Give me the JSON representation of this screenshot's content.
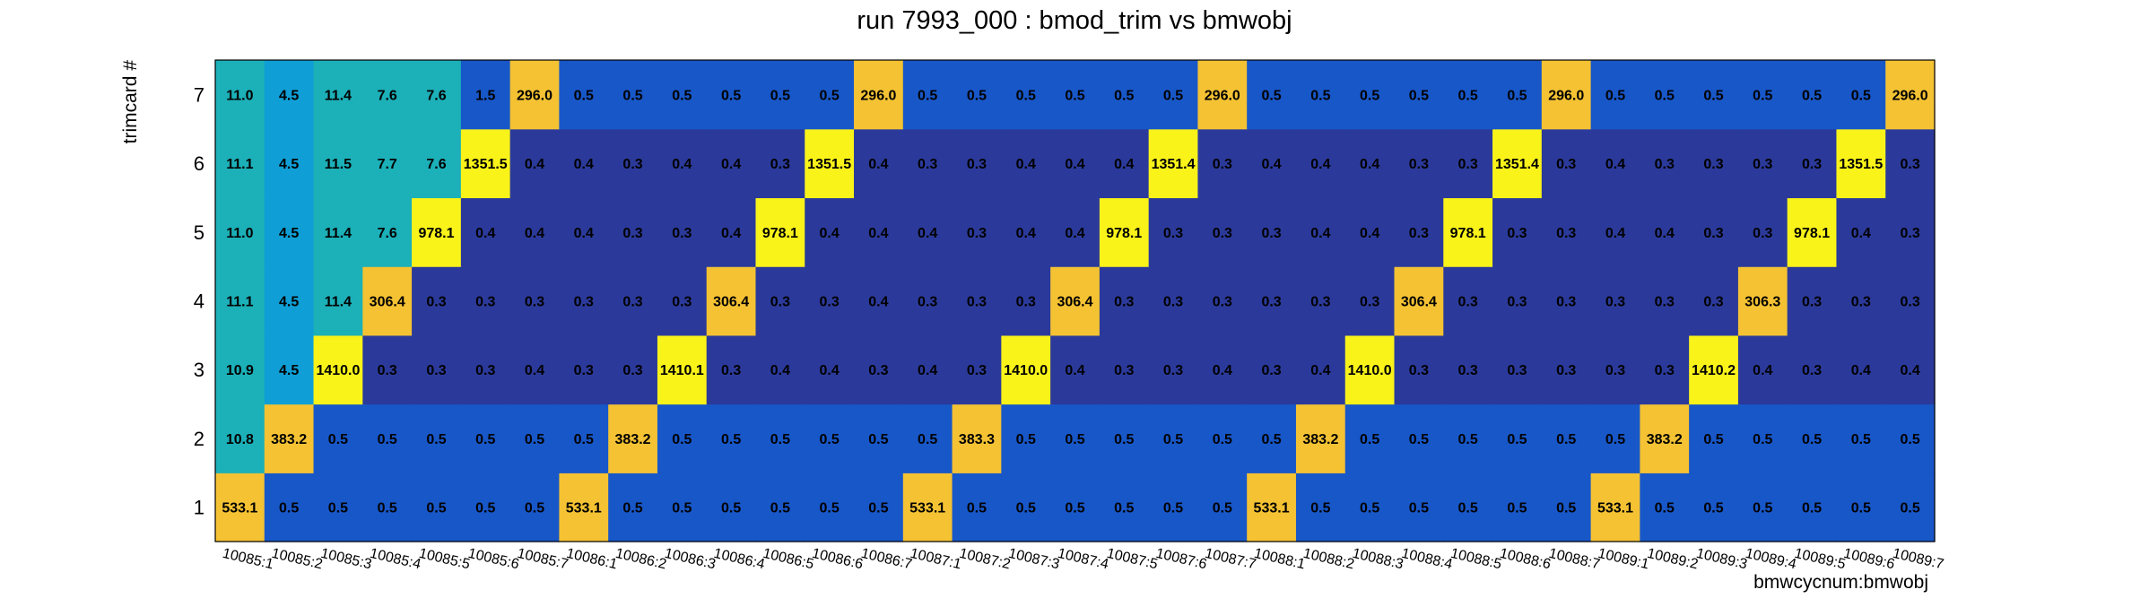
{
  "chart_data": {
    "type": "heatmap",
    "title": "run 7993_000 : bmod_trim vs bmwobj",
    "xlabel": "bmwcycnum:bmwobj",
    "ylabel": "trimcard #",
    "x_categories": [
      "10085:1",
      "10085:2",
      "10085:3",
      "10085:4",
      "10085:5",
      "10085:6",
      "10085:7",
      "10086:1",
      "10086:2",
      "10086:3",
      "10086:4",
      "10086:5",
      "10086:6",
      "10086:7",
      "10087:1",
      "10087:2",
      "10087:3",
      "10087:4",
      "10087:5",
      "10087:6",
      "10087:7",
      "10088:1",
      "10088:2",
      "10088:3",
      "10088:4",
      "10088:5",
      "10088:6",
      "10088:7",
      "10089:1",
      "10089:2",
      "10089:3",
      "10089:4",
      "10089:5",
      "10089:6",
      "10089:7"
    ],
    "y_categories": [
      "1",
      "2",
      "3",
      "4",
      "5",
      "6",
      "7"
    ],
    "values": [
      [
        533.1,
        0.5,
        0.5,
        0.5,
        0.5,
        0.5,
        0.5,
        533.1,
        0.5,
        0.5,
        0.5,
        0.5,
        0.5,
        0.5,
        533.1,
        0.5,
        0.5,
        0.5,
        0.5,
        0.5,
        0.5,
        533.1,
        0.5,
        0.5,
        0.5,
        0.5,
        0.5,
        0.5,
        533.1,
        0.5,
        0.5,
        0.5,
        0.5,
        0.5,
        0.5
      ],
      [
        10.8,
        383.2,
        0.5,
        0.5,
        0.5,
        0.5,
        0.5,
        0.5,
        383.2,
        0.5,
        0.5,
        0.5,
        0.5,
        0.5,
        0.5,
        383.3,
        0.5,
        0.5,
        0.5,
        0.5,
        0.5,
        0.5,
        383.2,
        0.5,
        0.5,
        0.5,
        0.5,
        0.5,
        0.5,
        383.2,
        0.5,
        0.5,
        0.5,
        0.5,
        0.5
      ],
      [
        10.9,
        4.5,
        1410.0,
        0.3,
        0.3,
        0.3,
        0.4,
        0.3,
        0.3,
        1410.1,
        0.3,
        0.4,
        0.4,
        0.3,
        0.4,
        0.3,
        1410.0,
        0.4,
        0.3,
        0.3,
        0.4,
        0.3,
        0.4,
        1410.0,
        0.3,
        0.3,
        0.3,
        0.3,
        0.3,
        0.3,
        1410.2,
        0.4,
        0.3,
        0.4,
        0.4
      ],
      [
        11.1,
        4.5,
        11.4,
        306.4,
        0.3,
        0.3,
        0.3,
        0.3,
        0.3,
        0.3,
        306.4,
        0.3,
        0.3,
        0.4,
        0.3,
        0.3,
        0.3,
        306.4,
        0.3,
        0.3,
        0.3,
        0.3,
        0.3,
        0.3,
        306.4,
        0.3,
        0.3,
        0.3,
        0.3,
        0.3,
        0.3,
        306.3,
        0.3,
        0.3,
        0.3
      ],
      [
        11.0,
        4.5,
        11.4,
        7.6,
        978.1,
        0.4,
        0.4,
        0.4,
        0.3,
        0.3,
        0.4,
        978.1,
        0.4,
        0.4,
        0.4,
        0.3,
        0.4,
        0.4,
        978.1,
        0.3,
        0.3,
        0.3,
        0.4,
        0.4,
        0.3,
        978.1,
        0.3,
        0.3,
        0.4,
        0.4,
        0.3,
        0.3,
        978.1,
        0.4,
        0.3
      ],
      [
        11.1,
        4.5,
        11.5,
        7.7,
        7.6,
        1351.5,
        0.4,
        0.4,
        0.3,
        0.4,
        0.4,
        0.3,
        1351.5,
        0.4,
        0.3,
        0.3,
        0.4,
        0.4,
        0.4,
        1351.4,
        0.3,
        0.4,
        0.4,
        0.4,
        0.3,
        0.3,
        1351.4,
        0.3,
        0.4,
        0.3,
        0.3,
        0.3,
        0.3,
        1351.5,
        0.3
      ],
      [
        11.0,
        4.5,
        11.4,
        7.6,
        7.6,
        1.5,
        296.0,
        0.5,
        0.5,
        0.5,
        0.5,
        0.5,
        0.5,
        296.0,
        0.5,
        0.5,
        0.5,
        0.5,
        0.5,
        0.5,
        296.0,
        0.5,
        0.5,
        0.5,
        0.5,
        0.5,
        0.5,
        296.0,
        0.5,
        0.5,
        0.5,
        0.5,
        0.5,
        0.5,
        296.0
      ]
    ],
    "colors": {
      "lowest": "#2b3a9a",
      "low": "#1857c8",
      "mid_low": "#0f9fd6",
      "mid": "#1cb0b8",
      "high": "#f4c233",
      "highest": "#f9f31a"
    },
    "grid": false,
    "legend": "none"
  }
}
